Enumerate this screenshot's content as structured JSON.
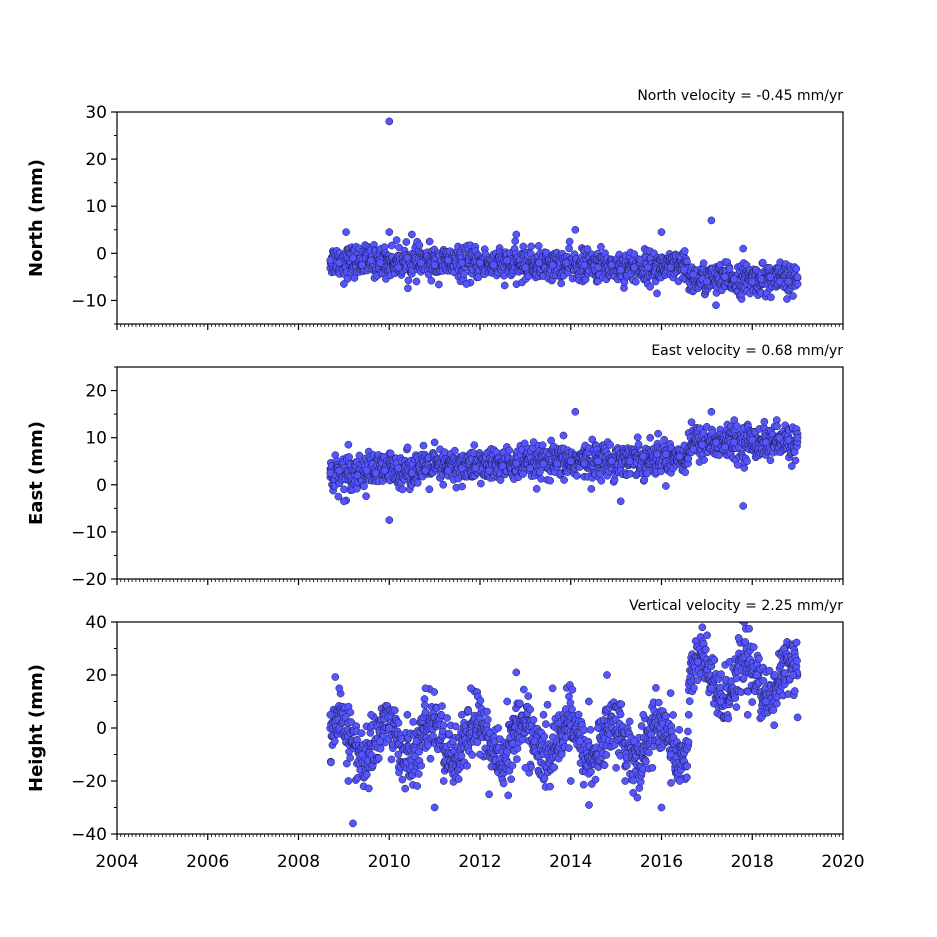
{
  "chart_data": [
    {
      "type": "scatter",
      "annotation": "North velocity = -0.45 mm/yr",
      "ylabel": "North (mm)",
      "xlim": [
        2004,
        2020
      ],
      "ylim": [
        -15,
        30
      ],
      "yticks": [
        "−10",
        "0",
        "10",
        "20",
        "30"
      ],
      "grid": false,
      "marker_color": "#5555ff",
      "series": [
        {
          "values": [
            [
              2008.7,
              -1.5
            ],
            [
              2008.9,
              -2.0
            ],
            [
              2009.0,
              -6.5
            ],
            [
              2009.05,
              4.5
            ],
            [
              2009.2,
              -1.0
            ],
            [
              2009.4,
              -2.5
            ],
            [
              2009.6,
              -1.5
            ],
            [
              2009.8,
              -2.0
            ],
            [
              2010.0,
              28.0
            ],
            [
              2010.0,
              4.5
            ],
            [
              2010.2,
              -3.0
            ],
            [
              2010.4,
              -1.0
            ],
            [
              2010.5,
              4.0
            ],
            [
              2010.7,
              -2.0
            ],
            [
              2011.0,
              -2.5
            ],
            [
              2011.3,
              -1.5
            ],
            [
              2011.6,
              -2.0
            ],
            [
              2011.7,
              -6.5
            ],
            [
              2012.0,
              -2.0
            ],
            [
              2012.3,
              -2.5
            ],
            [
              2012.6,
              -1.5
            ],
            [
              2012.8,
              4.0
            ],
            [
              2013.0,
              -3.0
            ],
            [
              2013.3,
              -2.0
            ],
            [
              2013.6,
              -2.5
            ],
            [
              2013.9,
              -2.0
            ],
            [
              2014.1,
              5.0
            ],
            [
              2014.3,
              -2.5
            ],
            [
              2014.6,
              -3.0
            ],
            [
              2014.9,
              -2.5
            ],
            [
              2015.1,
              -3.5
            ],
            [
              2015.4,
              -3.0
            ],
            [
              2015.7,
              -3.0
            ],
            [
              2015.9,
              -8.5
            ],
            [
              2016.0,
              4.5
            ],
            [
              2016.2,
              -3.0
            ],
            [
              2016.5,
              -3.5
            ],
            [
              2016.7,
              -4.5
            ],
            [
              2016.9,
              -5.5
            ],
            [
              2017.0,
              -6.0
            ],
            [
              2017.1,
              7.0
            ],
            [
              2017.2,
              -11.0
            ],
            [
              2017.4,
              -5.0
            ],
            [
              2017.6,
              -5.5
            ],
            [
              2017.8,
              1.0
            ],
            [
              2018.0,
              -6.0
            ],
            [
              2018.2,
              -5.5
            ],
            [
              2018.4,
              -5.0
            ],
            [
              2018.6,
              -6.0
            ],
            [
              2018.8,
              -6.0
            ],
            [
              2019.0,
              -6.5
            ]
          ]
        }
      ]
    },
    {
      "type": "scatter",
      "annotation": "East velocity = 0.68 mm/yr",
      "ylabel": "East (mm)",
      "xlim": [
        2004,
        2020
      ],
      "ylim": [
        -20,
        25
      ],
      "yticks": [
        "−20",
        "−10",
        "0",
        "10",
        "20"
      ],
      "grid": false,
      "marker_color": "#5555ff",
      "series": [
        {
          "values": [
            [
              2008.7,
              2.5
            ],
            [
              2008.9,
              3.0
            ],
            [
              2009.0,
              -3.5
            ],
            [
              2009.1,
              8.5
            ],
            [
              2009.3,
              2.0
            ],
            [
              2009.5,
              3.0
            ],
            [
              2009.7,
              2.5
            ],
            [
              2009.9,
              3.0
            ],
            [
              2010.0,
              -7.5
            ],
            [
              2010.2,
              3.5
            ],
            [
              2010.5,
              2.5
            ],
            [
              2010.8,
              3.0
            ],
            [
              2011.0,
              9.0
            ],
            [
              2011.3,
              3.0
            ],
            [
              2011.6,
              3.5
            ],
            [
              2011.9,
              3.5
            ],
            [
              2012.2,
              3.0
            ],
            [
              2012.5,
              4.0
            ],
            [
              2012.8,
              4.5
            ],
            [
              2013.1,
              3.5
            ],
            [
              2013.4,
              4.5
            ],
            [
              2013.7,
              4.5
            ],
            [
              2014.0,
              5.0
            ],
            [
              2014.1,
              15.5
            ],
            [
              2014.3,
              4.5
            ],
            [
              2014.6,
              5.0
            ],
            [
              2014.9,
              5.0
            ],
            [
              2015.1,
              -3.5
            ],
            [
              2015.3,
              5.0
            ],
            [
              2015.6,
              6.0
            ],
            [
              2015.9,
              6.5
            ],
            [
              2016.1,
              6.5
            ],
            [
              2016.4,
              6.0
            ],
            [
              2016.7,
              7.5
            ],
            [
              2016.9,
              8.5
            ],
            [
              2017.1,
              15.5
            ],
            [
              2017.2,
              9.0
            ],
            [
              2017.4,
              8.0
            ],
            [
              2017.6,
              9.0
            ],
            [
              2017.8,
              -4.5
            ],
            [
              2018.0,
              9.5
            ],
            [
              2018.3,
              9.0
            ],
            [
              2018.6,
              10.0
            ],
            [
              2018.8,
              9.5
            ],
            [
              2019.0,
              10.0
            ]
          ]
        }
      ]
    },
    {
      "type": "scatter",
      "annotation": "Vertical velocity = 2.25 mm/yr",
      "ylabel": "Height (mm)",
      "xlim": [
        2004,
        2020
      ],
      "ylim": [
        -40,
        40
      ],
      "yticks": [
        "−40",
        "−20",
        "0",
        "20",
        "40"
      ],
      "xticks": [
        "2004",
        "2006",
        "2008",
        "2010",
        "2012",
        "2014",
        "2016",
        "2018",
        "2020"
      ],
      "grid": false,
      "marker_color": "#5555ff",
      "series": [
        {
          "values": [
            [
              2008.7,
              5.0
            ],
            [
              2008.8,
              -5.0
            ],
            [
              2008.9,
              15.0
            ],
            [
              2009.1,
              -20.0
            ],
            [
              2009.2,
              -36.0
            ],
            [
              2009.4,
              -10.0
            ],
            [
              2009.6,
              5.0
            ],
            [
              2009.8,
              -5.0
            ],
            [
              2010.0,
              0.0
            ],
            [
              2010.2,
              -10.0
            ],
            [
              2010.4,
              5.0
            ],
            [
              2010.6,
              -5.0
            ],
            [
              2010.8,
              15.0
            ],
            [
              2011.0,
              -30.0
            ],
            [
              2011.2,
              -20.0
            ],
            [
              2011.4,
              -5.0
            ],
            [
              2011.6,
              5.0
            ],
            [
              2011.8,
              15.0
            ],
            [
              2012.0,
              -10.0
            ],
            [
              2012.2,
              -25.0
            ],
            [
              2012.4,
              0.0
            ],
            [
              2012.6,
              10.0
            ],
            [
              2012.8,
              21.0
            ],
            [
              2013.0,
              -15.0
            ],
            [
              2013.2,
              -5.0
            ],
            [
              2013.4,
              5.0
            ],
            [
              2013.6,
              15.0
            ],
            [
              2013.8,
              -10.0
            ],
            [
              2014.0,
              -20.0
            ],
            [
              2014.2,
              -5.0
            ],
            [
              2014.4,
              10.0
            ],
            [
              2014.6,
              0.0
            ],
            [
              2014.8,
              20.0
            ],
            [
              2015.0,
              -15.0
            ],
            [
              2015.2,
              -20.0
            ],
            [
              2015.4,
              -5.0
            ],
            [
              2015.6,
              5.0
            ],
            [
              2015.8,
              -15.0
            ],
            [
              2016.0,
              -30.0
            ],
            [
              2016.2,
              -10.0
            ],
            [
              2016.4,
              -20.0
            ],
            [
              2016.6,
              5.0
            ],
            [
              2016.8,
              25.0
            ],
            [
              2016.9,
              38.0
            ],
            [
              2017.1,
              15.0
            ],
            [
              2017.3,
              10.0
            ],
            [
              2017.5,
              25.0
            ],
            [
              2017.7,
              34.0
            ],
            [
              2017.9,
              5.0
            ],
            [
              2018.1,
              20.0
            ],
            [
              2018.3,
              10.0
            ],
            [
              2018.5,
              20.0
            ],
            [
              2018.7,
              30.0
            ],
            [
              2018.9,
              20.0
            ],
            [
              2019.0,
              4.0
            ]
          ]
        }
      ]
    }
  ]
}
